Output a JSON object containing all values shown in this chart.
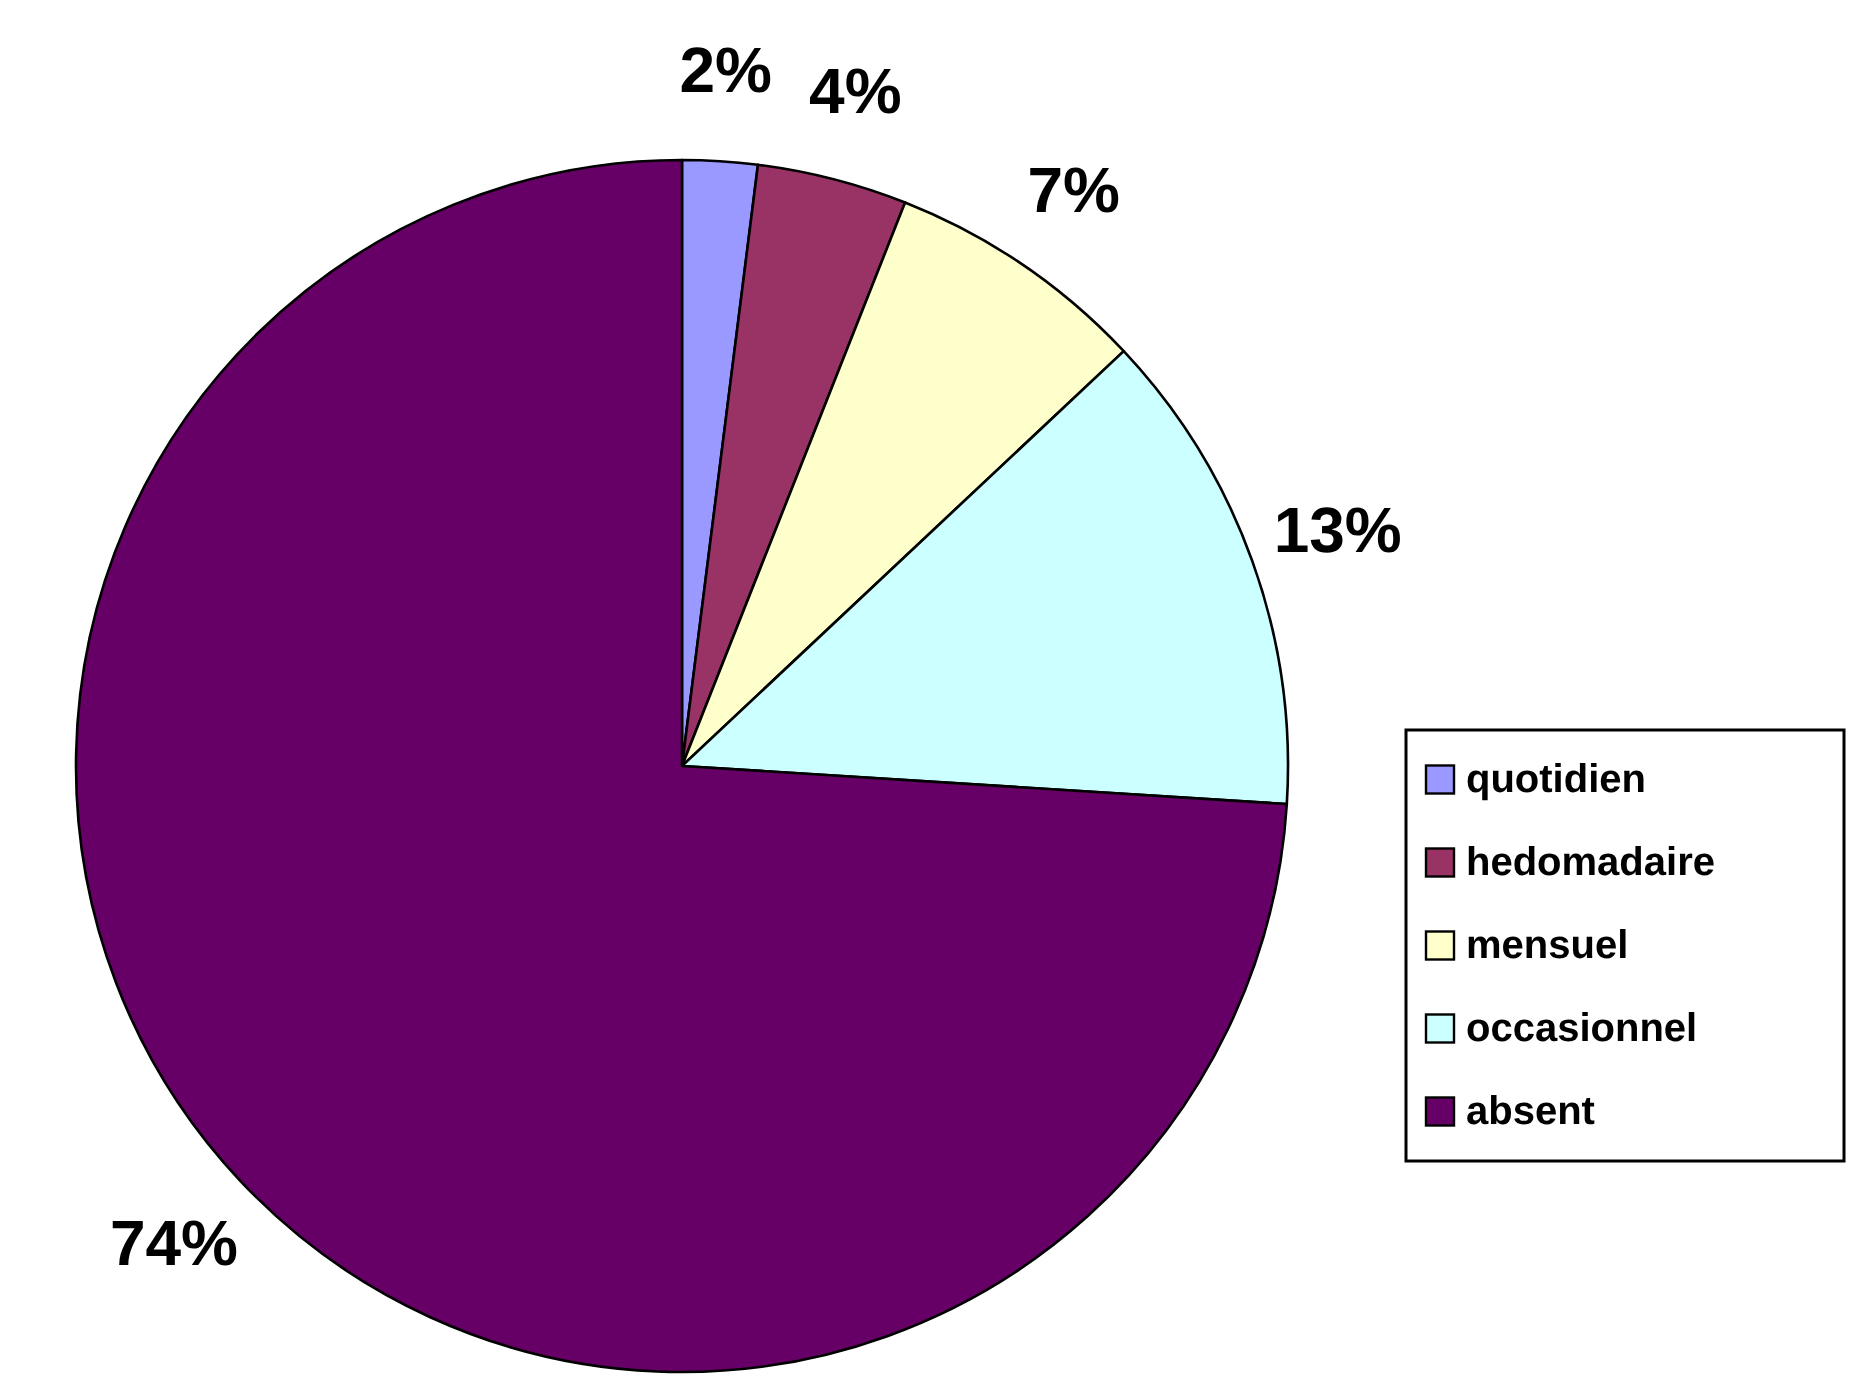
{
  "chart_data": {
    "type": "pie",
    "categories": [
      "quotidien",
      "hedomadaire",
      "mensuel",
      "occasionnel",
      "absent"
    ],
    "values": [
      2,
      4,
      7,
      13,
      74
    ],
    "colors": [
      "#9999ff",
      "#993366",
      "#ffffcc",
      "#ccffff",
      "#660066"
    ],
    "value_labels": [
      "2%",
      "4%",
      "7%",
      "13%",
      "74%"
    ],
    "legend": "right"
  }
}
